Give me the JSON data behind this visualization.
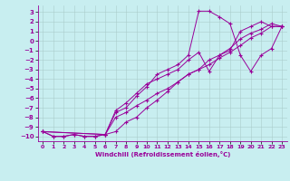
{
  "xlabel": "Windchill (Refroidissement éolien,°C)",
  "background_color": "#c8eef0",
  "grid_color": "#aacccc",
  "line_color": "#990099",
  "xlim": [
    -0.5,
    23.5
  ],
  "ylim": [
    -10.5,
    3.7
  ],
  "xticks": [
    0,
    1,
    2,
    3,
    4,
    5,
    6,
    7,
    8,
    9,
    10,
    11,
    12,
    13,
    14,
    15,
    16,
    17,
    18,
    19,
    20,
    21,
    22,
    23
  ],
  "yticks": [
    3,
    2,
    1,
    0,
    -1,
    -2,
    -3,
    -4,
    -5,
    -6,
    -7,
    -8,
    -9,
    -10
  ],
  "lines": [
    {
      "x": [
        0,
        1,
        2,
        3,
        4,
        5,
        6,
        7,
        8,
        9,
        10,
        11,
        12,
        13,
        14,
        15,
        16,
        17,
        18,
        19,
        20,
        21,
        22,
        23
      ],
      "y": [
        -9.5,
        -10,
        -10,
        -9.8,
        -10,
        -10,
        -9.8,
        -9.5,
        -8.5,
        -8.0,
        -7.0,
        -6.2,
        -5.3,
        -4.3,
        -3.5,
        -3.0,
        -2.0,
        -1.5,
        -0.8,
        0.2,
        0.8,
        1.2,
        1.8,
        1.5
      ]
    },
    {
      "x": [
        0,
        1,
        2,
        3,
        4,
        5,
        6,
        7,
        8,
        9,
        10,
        11,
        12,
        13,
        14,
        15,
        16,
        17,
        18,
        19,
        20,
        21,
        22,
        23
      ],
      "y": [
        -9.5,
        -10,
        -10,
        -9.8,
        -10,
        -10,
        -9.8,
        -8.0,
        -7.5,
        -6.8,
        -6.2,
        -5.5,
        -5.0,
        -4.3,
        -3.5,
        -3.0,
        -2.5,
        -1.8,
        -1.2,
        -0.5,
        0.3,
        0.8,
        1.5,
        1.5
      ]
    },
    {
      "x": [
        0,
        6,
        7,
        8,
        9,
        10,
        11,
        12,
        13,
        14,
        15,
        16,
        17,
        18,
        19,
        20,
        21,
        22,
        23
      ],
      "y": [
        -9.5,
        -9.8,
        -7.5,
        -7.0,
        -5.8,
        -4.8,
        -3.5,
        -3.0,
        -2.5,
        -1.5,
        3.1,
        3.1,
        2.5,
        1.8,
        -1.5,
        -3.2,
        -1.5,
        -0.8,
        1.5
      ]
    },
    {
      "x": [
        0,
        6,
        7,
        8,
        9,
        10,
        11,
        12,
        13,
        14,
        15,
        16,
        17,
        18,
        19,
        20,
        21,
        22,
        23
      ],
      "y": [
        -9.5,
        -9.8,
        -7.3,
        -6.5,
        -5.5,
        -4.5,
        -4.0,
        -3.5,
        -3.0,
        -2.0,
        -1.2,
        -3.2,
        -1.5,
        -1.0,
        1.0,
        1.5,
        2.0,
        1.5,
        1.5
      ]
    }
  ]
}
